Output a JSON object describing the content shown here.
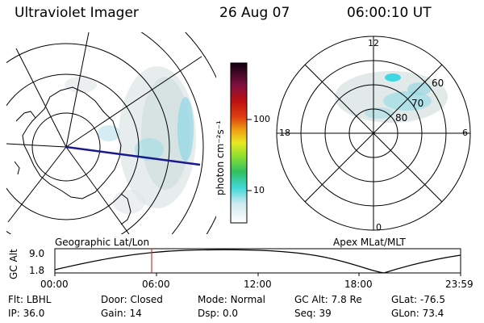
{
  "header": {
    "title": "Ultraviolet Imager",
    "date": "26 Aug 07",
    "time": "06:00:10 UT"
  },
  "left_panel": {
    "caption": "Geographic Lat/Lon"
  },
  "right_panel": {
    "caption": "Apex MLat/MLT",
    "mlt_labels": {
      "top": "12",
      "left": "18",
      "right": "6",
      "bottom": "0"
    },
    "mlat_labels": [
      "60",
      "70",
      "80"
    ]
  },
  "colorbar": {
    "unit_label": "photon cm⁻²s⁻¹",
    "ticks": [
      "100",
      "10"
    ]
  },
  "altitude_plot": {
    "ylabel": "GC Alt",
    "y_ticks": [
      "9.0",
      "1.8"
    ],
    "x_ticks": [
      "00:00",
      "06:00",
      "12:00",
      "18:00",
      "23:59"
    ],
    "marker_color": "#cc3333"
  },
  "status": {
    "row1": [
      {
        "label": "Flt:",
        "value": "LBHL"
      },
      {
        "label": "Door:",
        "value": "Closed"
      },
      {
        "label": "Mode:",
        "value": "Normal"
      },
      {
        "label": "GC Alt:",
        "value": "7.8 Re"
      },
      {
        "label": "GLat:",
        "value": "-76.5"
      }
    ],
    "row2": [
      {
        "label": "IP:",
        "value": "36.0"
      },
      {
        "label": "Gain:",
        "value": "14"
      },
      {
        "label": "Dsp:",
        "value": "0.0"
      },
      {
        "label": "Seq:",
        "value": "39"
      },
      {
        "label": "GLon:",
        "value": "73.4"
      }
    ]
  },
  "colors": {
    "trace": "#1a1a8c",
    "aurora": "#7fd8e0",
    "noise": "#b8c8c8"
  }
}
